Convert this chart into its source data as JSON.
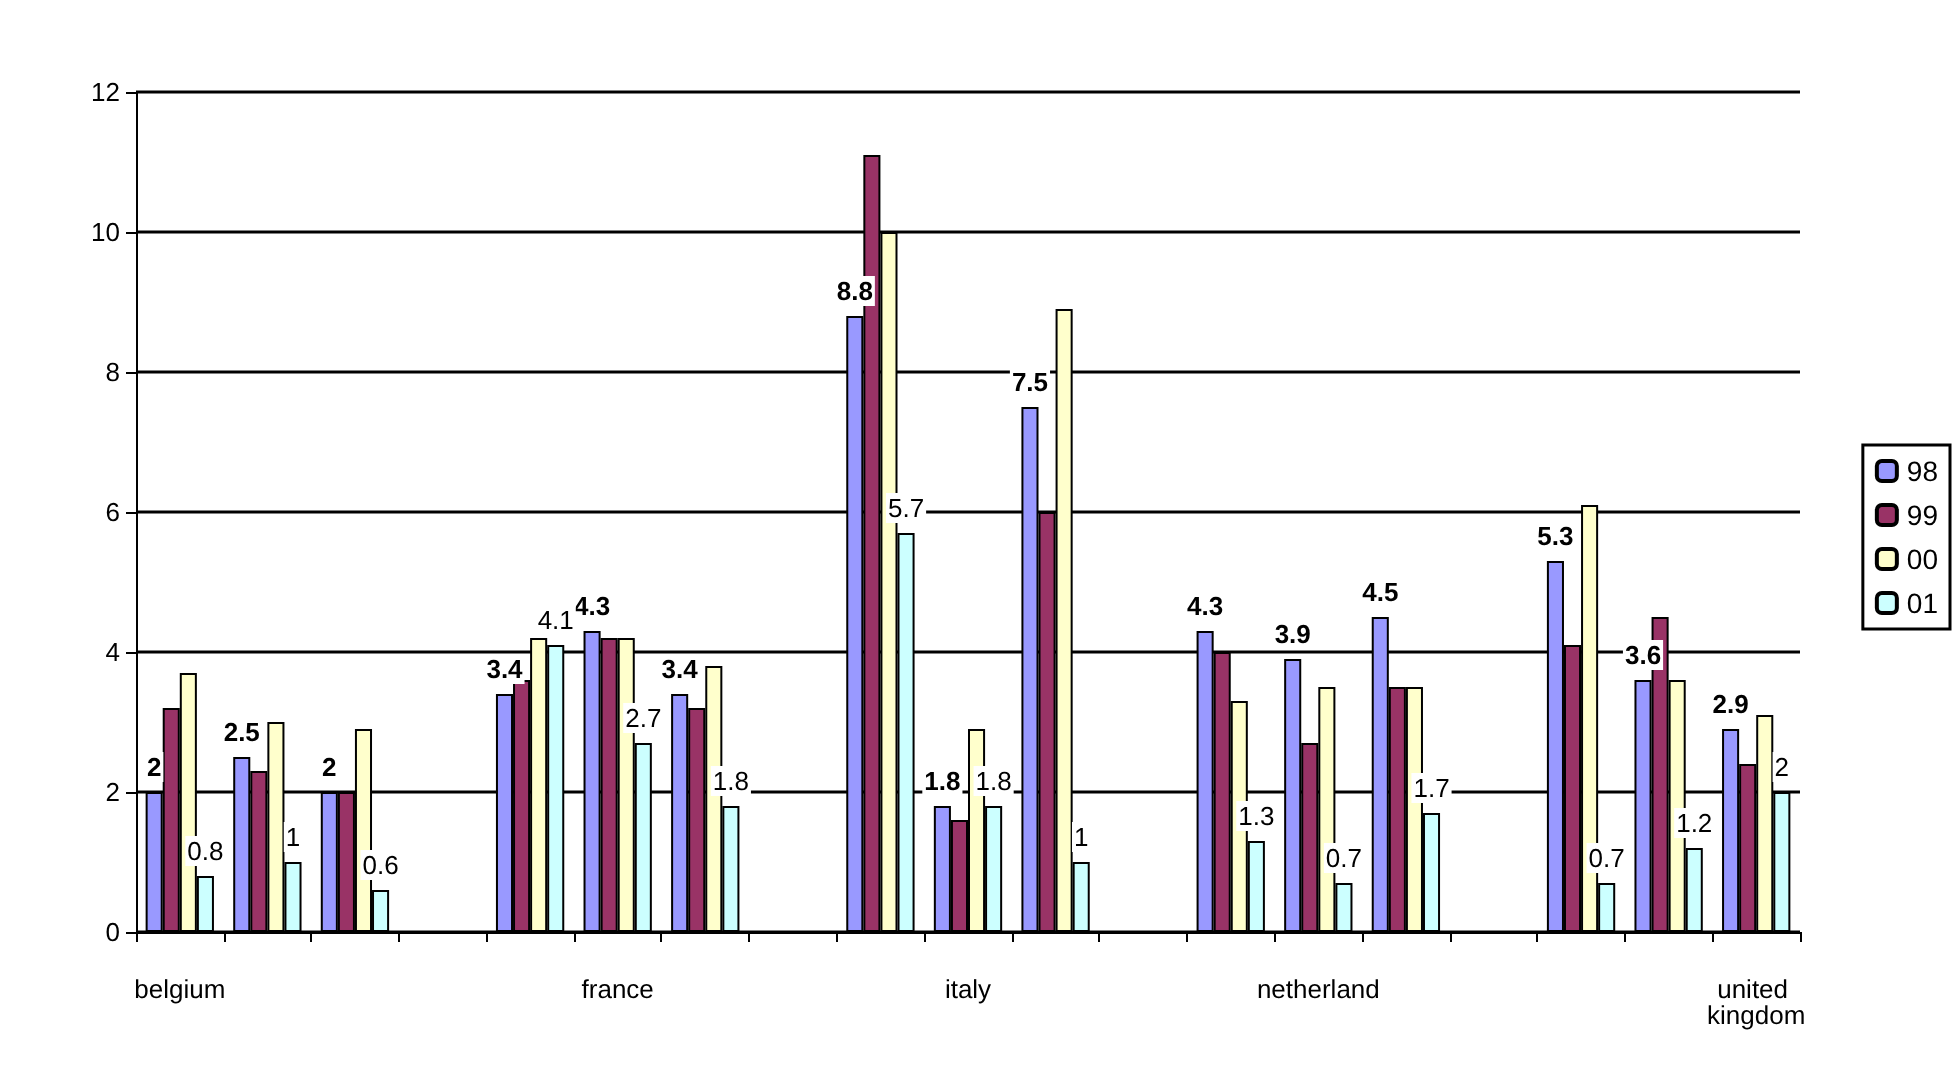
{
  "chart_data": {
    "type": "bar",
    "categories": [
      "belgium",
      null,
      null,
      null,
      null,
      "france",
      null,
      null,
      null,
      "italy",
      null,
      null,
      null,
      "netherland",
      null,
      null,
      null,
      null,
      "united kingdom"
    ],
    "series": [
      {
        "name": "98",
        "color": "#9999ff",
        "values": [
          2,
          2.5,
          2,
          null,
          3.4,
          4.3,
          3.4,
          null,
          8.8,
          1.8,
          7.5,
          null,
          4.3,
          3.9,
          4.5,
          null,
          5.3,
          3.6,
          2.9
        ],
        "value_labels": [
          "2",
          "2.5",
          "2",
          null,
          "3.4",
          "4.3",
          "3.4",
          null,
          "8.8",
          "1.8",
          "7.5",
          null,
          "4.3",
          "3.9",
          "4.5",
          null,
          "5.3",
          "3.6",
          "2.9"
        ]
      },
      {
        "name": "99",
        "color": "#993366",
        "values": [
          3.2,
          2.3,
          2,
          null,
          3.6,
          4.2,
          3.2,
          null,
          11.1,
          1.6,
          6,
          null,
          4,
          2.7,
          3.5,
          null,
          4.1,
          4.5,
          2.4
        ]
      },
      {
        "name": "00",
        "color": "#ffffcc",
        "values": [
          3.7,
          3,
          2.9,
          null,
          4.2,
          4.2,
          3.8,
          null,
          10,
          2.9,
          8.9,
          null,
          3.3,
          3.5,
          3.5,
          null,
          6.1,
          3.6,
          3.1
        ]
      },
      {
        "name": "01",
        "color": "#ccffff",
        "values": [
          0.8,
          1,
          0.6,
          null,
          4.1,
          2.7,
          1.8,
          null,
          5.7,
          1.8,
          1,
          null,
          1.3,
          0.7,
          1.7,
          null,
          0.7,
          1.2,
          2
        ],
        "value_labels": [
          "0.8",
          "1",
          "0.6",
          null,
          "4.1",
          "2.7",
          "1.8",
          null,
          "5.7",
          "1.8",
          "1",
          null,
          "1.3",
          "0.7",
          "1.7",
          null,
          "0.7",
          "1.2",
          "2"
        ]
      }
    ],
    "ylim": [
      0,
      12
    ],
    "yticks": [
      0,
      2,
      4,
      6,
      8,
      10,
      12
    ],
    "grid": "y",
    "legend": "right"
  }
}
